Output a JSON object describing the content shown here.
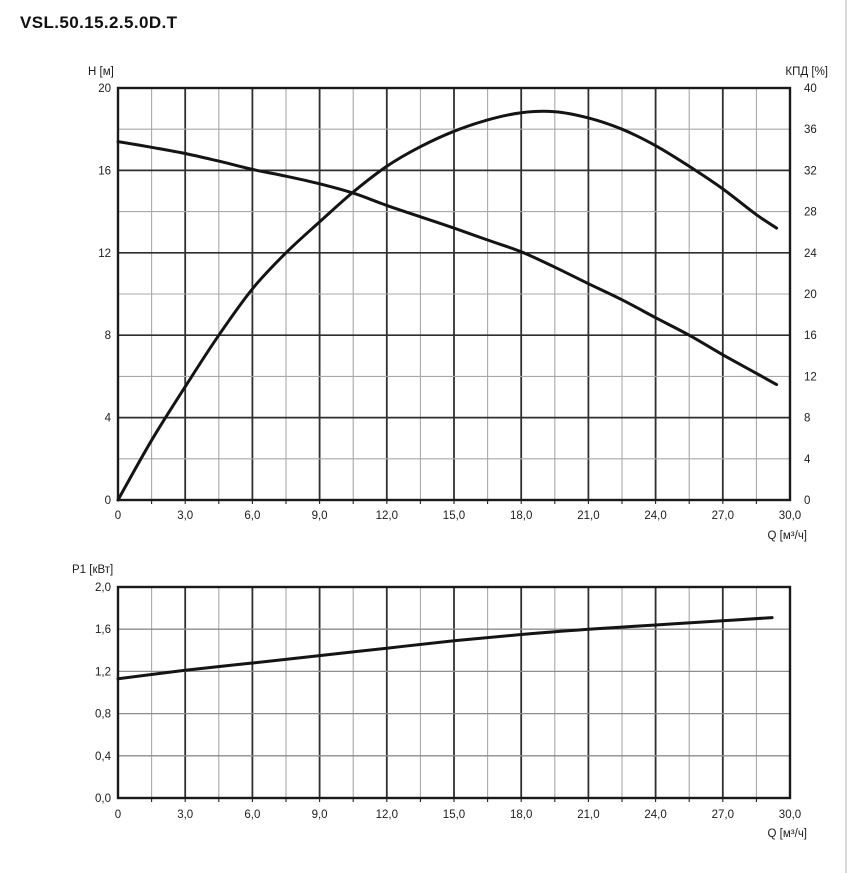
{
  "title": "VSL.50.15.2.5.0D.T",
  "colors": {
    "curve": "#141414",
    "grid_major": "#2f2f2f",
    "grid_minor": "#a9a9a9",
    "grid_mid": "#8d8d8d",
    "border": "#1a1a1a",
    "text": "#1c1c1c",
    "page_edge": "#d9d9d9"
  },
  "chart_data": [
    {
      "name": "head-and-efficiency-chart",
      "type": "line",
      "title": "",
      "xlabel": "Q [м³/ч]",
      "xlim": [
        0,
        30
      ],
      "x_major_step": 3,
      "x_minor_step": 1.5,
      "x_tick_values": [
        0,
        3,
        6,
        9,
        12,
        15,
        18,
        21,
        24,
        27,
        30
      ],
      "x_tick_labels": [
        "0",
        "3,0",
        "6,0",
        "9,0",
        "12,0",
        "15,0",
        "18,0",
        "21,0",
        "24,0",
        "27,0",
        "30,0"
      ],
      "grid": true,
      "left_axis": {
        "label": "H [м]",
        "lim": [
          0,
          20
        ],
        "major_step": 4,
        "minor_step": 2,
        "tick_values": [
          20,
          16,
          12,
          8,
          4,
          0
        ],
        "tick_labels": [
          "20",
          "16",
          "12",
          "8",
          "4",
          "0"
        ]
      },
      "right_axis": {
        "label": "КПД [%]",
        "lim": [
          0,
          40
        ],
        "tick_values": [
          40,
          36,
          32,
          28,
          24,
          20,
          16,
          12,
          8,
          4,
          0
        ],
        "tick_labels": [
          "40",
          "36",
          "32",
          "28",
          "24",
          "20",
          "16",
          "12",
          "8",
          "4",
          "0"
        ]
      },
      "series": [
        {
          "name": "head-curve",
          "label": "H",
          "axis": "left",
          "points": [
            [
              0,
              17.4
            ],
            [
              1.5,
              17.12
            ],
            [
              3,
              16.82
            ],
            [
              4.5,
              16.45
            ],
            [
              6,
              16.05
            ],
            [
              7.5,
              15.72
            ],
            [
              9,
              15.35
            ],
            [
              10.5,
              14.9
            ],
            [
              12,
              14.3
            ],
            [
              13.5,
              13.75
            ],
            [
              15,
              13.2
            ],
            [
              16.5,
              12.62
            ],
            [
              18,
              12.05
            ],
            [
              19.5,
              11.3
            ],
            [
              21,
              10.5
            ],
            [
              22.5,
              9.72
            ],
            [
              24,
              8.85
            ],
            [
              25.5,
              8.0
            ],
            [
              27,
              7.05
            ],
            [
              28.5,
              6.15
            ],
            [
              29.4,
              5.6
            ]
          ]
        },
        {
          "name": "efficiency-curve",
          "label": "КПД",
          "axis": "right",
          "points": [
            [
              0,
              0
            ],
            [
              1.5,
              5.8
            ],
            [
              3,
              11.0
            ],
            [
              4.5,
              16.0
            ],
            [
              6,
              20.5
            ],
            [
              7.5,
              24.0
            ],
            [
              9,
              27.0
            ],
            [
              10.5,
              29.9
            ],
            [
              12,
              32.4
            ],
            [
              13.5,
              34.3
            ],
            [
              15,
              35.8
            ],
            [
              16.5,
              36.9
            ],
            [
              18,
              37.6
            ],
            [
              19.5,
              37.7
            ],
            [
              21,
              37.1
            ],
            [
              22.5,
              36.0
            ],
            [
              24,
              34.4
            ],
            [
              25.5,
              32.4
            ],
            [
              27,
              30.2
            ],
            [
              28.5,
              27.7
            ],
            [
              29.4,
              26.4
            ]
          ]
        }
      ]
    },
    {
      "name": "power-chart",
      "type": "line",
      "title": "",
      "xlabel": "Q [м³/ч]",
      "xlim": [
        0,
        30
      ],
      "x_major_step": 3,
      "x_minor_step": 1.5,
      "x_tick_values": [
        0,
        3,
        6,
        9,
        12,
        15,
        18,
        21,
        24,
        27,
        30
      ],
      "x_tick_labels": [
        "0",
        "3,0",
        "6,0",
        "9,0",
        "12,0",
        "15,0",
        "18,0",
        "21,0",
        "24,0",
        "27,0",
        "30,0"
      ],
      "grid": true,
      "left_axis": {
        "label": "P1 [кВт]",
        "lim": [
          0,
          2
        ],
        "major_step": 0.4,
        "tick_values": [
          2.0,
          1.6,
          1.2,
          0.8,
          0.4,
          0.0
        ],
        "tick_labels": [
          "2,0",
          "1,6",
          "1,2",
          "0,8",
          "0,4",
          "0,0"
        ]
      },
      "series": [
        {
          "name": "power-curve",
          "label": "P1",
          "axis": "left",
          "points": [
            [
              0,
              1.13
            ],
            [
              3,
              1.21
            ],
            [
              6,
              1.28
            ],
            [
              9,
              1.35
            ],
            [
              12,
              1.42
            ],
            [
              15,
              1.49
            ],
            [
              18,
              1.55
            ],
            [
              21,
              1.6
            ],
            [
              24,
              1.64
            ],
            [
              27,
              1.68
            ],
            [
              29.2,
              1.71
            ]
          ]
        }
      ]
    }
  ]
}
